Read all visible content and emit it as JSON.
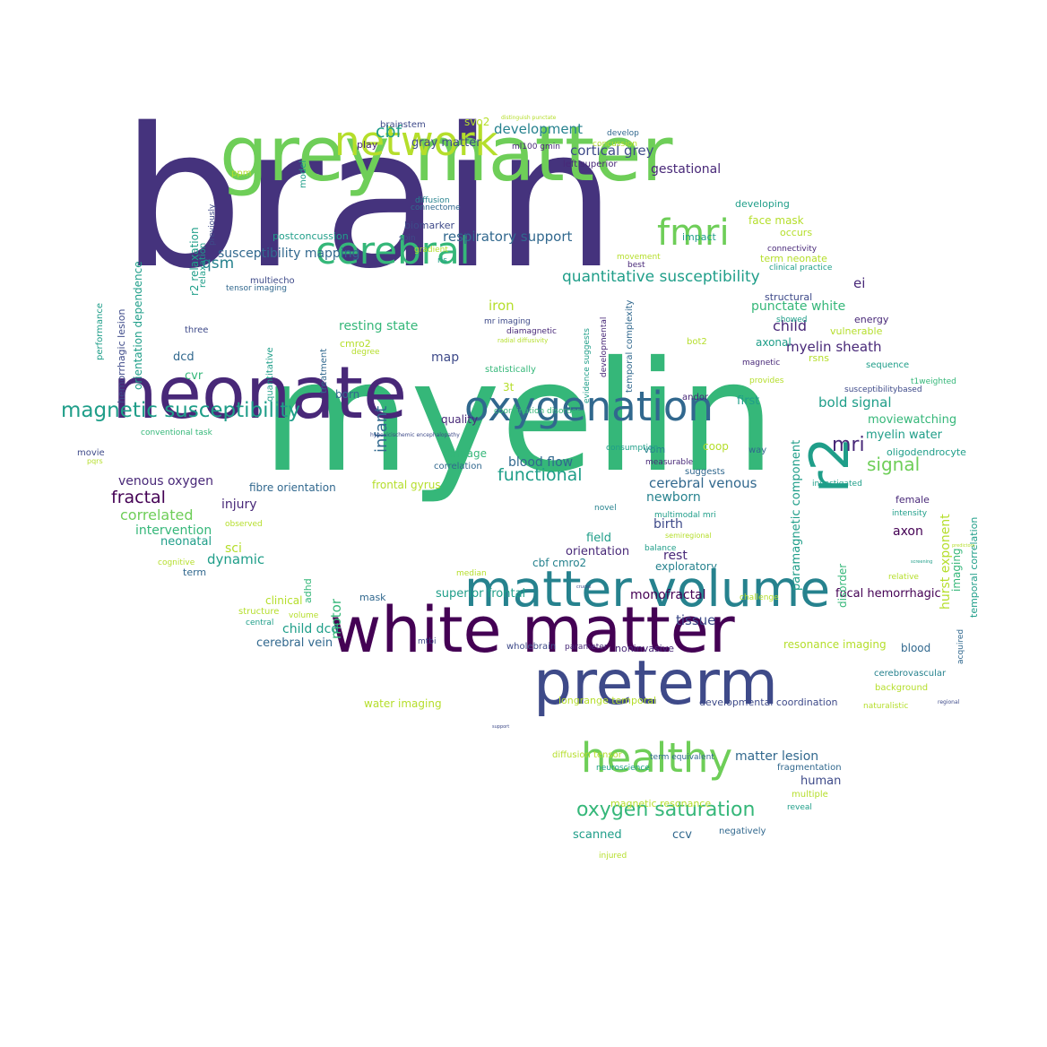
{
  "palette": {
    "deep_purple": "#45337d",
    "dark_purple": "#440154",
    "purple": "#482878",
    "indigo": "#3e4a89",
    "blue": "#31688e",
    "steel": "#26828e",
    "teal": "#1f9e89",
    "green": "#35b779",
    "bright_green": "#6ece58",
    "lime": "#b5de2b",
    "yellow": "#dde318"
  },
  "words": [
    "brain",
    "myelin",
    "grey matter",
    "neonate",
    "white matter",
    "matter volume",
    "preterm",
    "oxygenation",
    "healthy",
    "network",
    "cerebral",
    "fmri",
    "r2",
    "magnetic susceptibility",
    "oxygen saturation",
    "quantitative susceptibility",
    "mri",
    "functional",
    "fractal",
    "infant",
    "signal",
    "myelin sheath",
    "respiratory support",
    "development",
    "cbf",
    "cortical grey",
    "gestational",
    "susceptibility mapping",
    "qsm",
    "venous oxygen",
    "blood flow",
    "cerebral venous",
    "correlated",
    "bold signal",
    "moviewatching",
    "myelin water",
    "punctate white",
    "child",
    "child dcd",
    "cerebral vein",
    "monofractal",
    "tissue",
    "dynamic",
    "injury",
    "intervention",
    "matter lesion",
    "human",
    "scanned",
    "ccv",
    "axon",
    "focal hemorrhagic",
    "paramagnetic component",
    "hurst exponent",
    "gray matter",
    "resting state",
    "iron",
    "map",
    "newborn",
    "birth",
    "rest",
    "exploratory",
    "orientation",
    "field",
    "cbf cmro2",
    "motor",
    "superior frontal",
    "cvr",
    "dcd",
    "three",
    "sci",
    "neonatal",
    "term",
    "adhd",
    "clinical",
    "structure",
    "volume",
    "central",
    "mask",
    "mtbi",
    "wholebrain",
    "parameter",
    "noninvasive",
    "resonance imaging",
    "blood",
    "cerebrovascular",
    "background",
    "naturalistic",
    "water imaging",
    "longrange temporal",
    "developmental coordination",
    "diffusion tensor",
    "neuroscience",
    "term equivalent",
    "fragmentation",
    "magnetic resonance",
    "negatively",
    "multiple",
    "reveal",
    "injured",
    "frontal gyrus",
    "fibre orientation",
    "damage",
    "correlation",
    "coop",
    "vbm",
    "consumption",
    "way",
    "measurable",
    "suggests",
    "novel",
    "multimodal mri",
    "semiregional",
    "balance",
    "median",
    "challenge",
    "relative",
    "imaging",
    "temporal correlation",
    "female",
    "intensity",
    "investigated",
    "oligodendrocyte",
    "t1weighted",
    "susceptibilitybased",
    "sequence",
    "provides",
    "andor",
    "first",
    "3t",
    "statistically",
    "coordination disorder",
    "quality",
    "born",
    "cmro2",
    "degree",
    "treatment",
    "quantitative",
    "tensor imaging",
    "multiecho",
    "postconcussion",
    "relaxation",
    "r2 relaxation",
    "previously",
    "ppm",
    "model",
    "brainstem",
    "play",
    "svo2",
    "ml100 gmin",
    "concussion",
    "left superior",
    "develop",
    "diffusion",
    "connectome",
    "biomarker",
    "spin",
    "gradient",
    "rls",
    "developing",
    "face mask",
    "occurs",
    "impact",
    "movement",
    "best",
    "connectivity",
    "clinical practice",
    "term neonate",
    "structural",
    "energy",
    "vulnerable",
    "axonal",
    "bot2",
    "rsns",
    "magnetic",
    "showed",
    "ei",
    "orientation dependence",
    "hemorrhagic lesion",
    "performance",
    "mr imaging",
    "diamagnetic",
    "radial diffusivity",
    "evidence suggests",
    "developmental",
    "temporal complexity",
    "conventional task",
    "movie",
    "pqrs",
    "cognitive",
    "observed",
    "disorder",
    "hypoxicischemic encephalopathy",
    "distinguish punctate",
    "acquired",
    "regional",
    "crucial",
    "screening",
    "predictors",
    "support"
  ]
}
